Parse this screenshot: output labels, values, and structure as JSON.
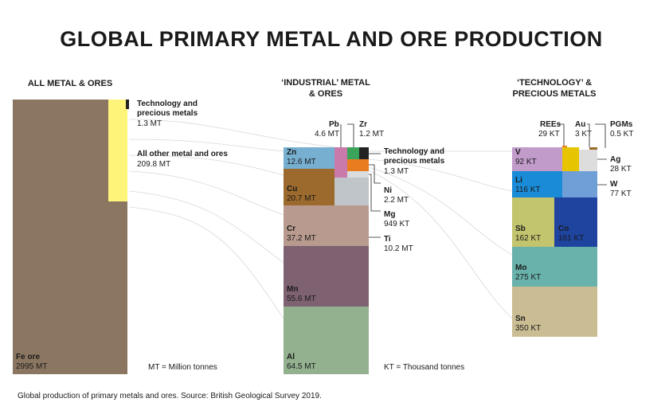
{
  "title": "GLOBAL PRIMARY METAL AND ORE PRODUCTION",
  "panels": [
    {
      "heading": [
        "ALL METAL & ORES"
      ],
      "blocks": [
        {
          "label": [
            "Fe ore"
          ],
          "value": "2995 MT",
          "color": "#8b7761"
        },
        {
          "label": [
            "All other metal and ores"
          ],
          "value": "209.8 MT",
          "color": "#fff47a"
        },
        {
          "label": [
            "Technology and",
            "precious metals"
          ],
          "value": "1.3 MT",
          "color": "#222222"
        }
      ],
      "note": "MT = Million tonnes"
    },
    {
      "heading": [
        "‘INDUSTRIAL’ METAL",
        "& ORES"
      ],
      "blocks": [
        {
          "label": [
            "Al"
          ],
          "value": "64.5 MT",
          "color": "#93b08f"
        },
        {
          "label": [
            "Mn"
          ],
          "value": "55.6 MT",
          "color": "#7e6272"
        },
        {
          "label": [
            "Cr"
          ],
          "value": "37.2 MT",
          "color": "#b89b8e"
        },
        {
          "label": [
            "Cu"
          ],
          "value": "20.7 MT",
          "color": "#9c6a2c"
        },
        {
          "label": [
            "Zn"
          ],
          "value": "12.6 MT",
          "color": "#77afd1"
        },
        {
          "label": [
            "Pb"
          ],
          "value": "4.6 MT",
          "color": "#c97aaa"
        },
        {
          "label": [
            "Zr"
          ],
          "value": "1.2 MT",
          "color": "#222222"
        },
        {
          "label": [
            "Technology and",
            "precious metals"
          ],
          "value": "1.3 MT",
          "color": "#3aa55a"
        },
        {
          "label": [
            "Ni"
          ],
          "value": "2.2 MT",
          "color": "#e87c1e"
        },
        {
          "label": [
            "Mg"
          ],
          "value": "949 KT",
          "color": "#d9dde0"
        },
        {
          "label": [
            "Ti"
          ],
          "value": "10.2 MT",
          "color": "#bfc5c8"
        }
      ],
      "note": "KT = Thousand tonnes"
    },
    {
      "heading": [
        "‘TECHNOLOGY’ &",
        "PRECIOUS METALS"
      ],
      "blocks": [
        {
          "label": [
            "Sn"
          ],
          "value": "350 KT",
          "color": "#cbbd93"
        },
        {
          "label": [
            "Mo"
          ],
          "value": "275 KT",
          "color": "#69b2ac"
        },
        {
          "label": [
            "Sb"
          ],
          "value": "162 KT",
          "color": "#c2c46e"
        },
        {
          "label": [
            "Co"
          ],
          "value": "161 KT",
          "color": "#1e44a0"
        },
        {
          "label": [
            "Li"
          ],
          "value": "116 KT",
          "color": "#1a8bd6"
        },
        {
          "label": [
            "W"
          ],
          "value": "77 KT",
          "color": "#6f9fd6"
        },
        {
          "label": [
            "V"
          ],
          "value": "92 KT",
          "color": "#c19ccb"
        },
        {
          "label": [
            "Au"
          ],
          "value": "3 KT",
          "color": "#e6c400"
        },
        {
          "label": [
            "Ag"
          ],
          "value": "28 KT",
          "color": "#dddddd"
        },
        {
          "label": [
            "PGMs"
          ],
          "value": "0.5 KT",
          "color": "#9c6a2c"
        },
        {
          "label": [
            "REEs"
          ],
          "value": "29 KT",
          "color": "#e87c1e"
        }
      ]
    }
  ],
  "footer": "Global production of primary metals and ores. Source: British Geological Survey 2019."
}
